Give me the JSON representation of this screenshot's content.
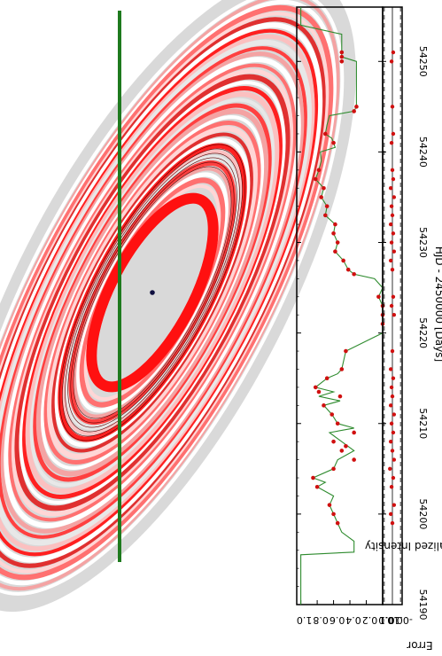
{
  "chart_data": [
    {
      "type": "line",
      "panel": "light-curve",
      "xlabel": "HJD - 2450000 [Days]",
      "ylabel": "Normalized Intensity",
      "xlim": [
        54190,
        54256
      ],
      "ylim": [
        0.0,
        1.05
      ],
      "x_ticks": [
        54190,
        54200,
        54210,
        54220,
        54230,
        54240,
        54250
      ],
      "y_ticks": [
        "0.0",
        "0.2",
        "0.4",
        "0.6",
        "0.8",
        "1.0"
      ],
      "model_color": "#2e8b2e",
      "marker_color": "#d01010",
      "model": {
        "x": [
          54190,
          54195.5,
          54195.8,
          54197,
          54198,
          54199,
          54200,
          54201,
          54202,
          54203,
          54203.5,
          54204,
          54205,
          54206,
          54207,
          54208,
          54209,
          54209.5,
          54210,
          54211,
          54212,
          54212.5,
          54213,
          54213.5,
          54214,
          54215,
          54215.5,
          54216,
          54218,
          54220,
          54222,
          54223,
          54224,
          54225,
          54226,
          54226.5,
          54227,
          54228,
          54229,
          54230,
          54231,
          54232,
          54233,
          54234,
          54235,
          54236,
          54237,
          54238,
          54239,
          54240,
          54240.5,
          54241,
          54241.5,
          54242,
          54243,
          54244,
          54244.5,
          54245,
          54247,
          54250,
          54250.5,
          54251,
          54253,
          54254,
          54256
        ],
        "y": [
          1.0,
          1.0,
          0.35,
          0.35,
          0.5,
          0.55,
          0.6,
          0.65,
          0.6,
          0.8,
          0.7,
          0.85,
          0.6,
          0.55,
          0.35,
          0.5,
          0.65,
          0.35,
          0.55,
          0.62,
          0.72,
          0.52,
          0.78,
          0.6,
          0.82,
          0.68,
          0.55,
          0.5,
          0.45,
          0.0,
          0.0,
          0.0,
          0.05,
          0.0,
          0.1,
          0.35,
          0.42,
          0.48,
          0.58,
          0.55,
          0.6,
          0.58,
          0.7,
          0.68,
          0.75,
          0.72,
          0.82,
          0.78,
          0.75,
          0.76,
          0.58,
          0.6,
          0.62,
          0.7,
          0.68,
          0.65,
          0.35,
          0.32,
          0.32,
          0.32,
          0.5,
          0.5,
          0.5,
          1.0,
          1.0
        ]
      },
      "observations": {
        "x": [
          54199,
          54200,
          54201,
          54203,
          54204,
          54205,
          54206,
          54207,
          54207.5,
          54208,
          54209,
          54210,
          54211,
          54212,
          54213,
          54213.5,
          54214,
          54215,
          54216,
          54218,
          54221,
          54222,
          54223,
          54224,
          54226.5,
          54227,
          54228,
          54229,
          54230,
          54231,
          54232,
          54233,
          54234,
          54235,
          54236,
          54237,
          54238,
          54241,
          54242,
          54244.5,
          54245,
          54250,
          54250.5,
          54251
        ],
        "y": [
          0.55,
          0.6,
          0.65,
          0.8,
          0.85,
          0.6,
          0.35,
          0.5,
          0.45,
          0.6,
          0.35,
          0.55,
          0.62,
          0.72,
          0.52,
          0.78,
          0.82,
          0.68,
          0.5,
          0.45,
          0.0,
          0.0,
          0.0,
          0.05,
          0.35,
          0.42,
          0.48,
          0.58,
          0.55,
          0.6,
          0.58,
          0.7,
          0.68,
          0.75,
          0.72,
          0.82,
          0.78,
          0.6,
          0.7,
          0.35,
          0.32,
          0.5,
          0.5,
          0.5
        ]
      }
    },
    {
      "type": "scatter",
      "panel": "residuals",
      "ylabel": "Error",
      "xlim": [
        54190,
        54256
      ],
      "ylim": [
        -0.12,
        0.12
      ],
      "y_ticks": [
        "-0.1",
        "0.0",
        "0.1"
      ],
      "reference_lines": [
        -0.1,
        0.0,
        0.1
      ],
      "marker_color": "#d01010",
      "x": [
        54199,
        54200,
        54201,
        54203,
        54204,
        54205,
        54206,
        54207,
        54208,
        54209,
        54210,
        54211,
        54212,
        54213,
        54214,
        54215,
        54216,
        54218,
        54222,
        54223,
        54224,
        54227,
        54228,
        54229,
        54230,
        54231,
        54232,
        54233,
        54234,
        54235,
        54236,
        54237,
        54238,
        54241,
        54242,
        54245,
        54250,
        54251
      ],
      "y": [
        0.0,
        0.02,
        -0.02,
        0.01,
        -0.01,
        0.03,
        -0.02,
        0.0,
        0.02,
        -0.01,
        0.01,
        -0.02,
        0.02,
        0.0,
        0.01,
        -0.01,
        0.02,
        0.0,
        -0.02,
        0.01,
        -0.01,
        0.0,
        0.02,
        -0.02,
        0.01,
        -0.01,
        0.02,
        0.0,
        0.01,
        -0.02,
        0.02,
        -0.01,
        0.0,
        0.01,
        -0.01,
        0.0,
        0.01,
        -0.01
      ]
    }
  ],
  "disk_model": {
    "disk_color": "#d9d9d9",
    "ring_colors": [
      "#f4a3a3",
      "#ffffff",
      "#ff7070",
      "#ffd6d6",
      "#e03030",
      "#ffffff",
      "#ff2020",
      "#fbc0c0",
      "#e8e8e8",
      "#ff4040"
    ],
    "star_color": "#101040",
    "path_color": "#1e7a1e"
  }
}
